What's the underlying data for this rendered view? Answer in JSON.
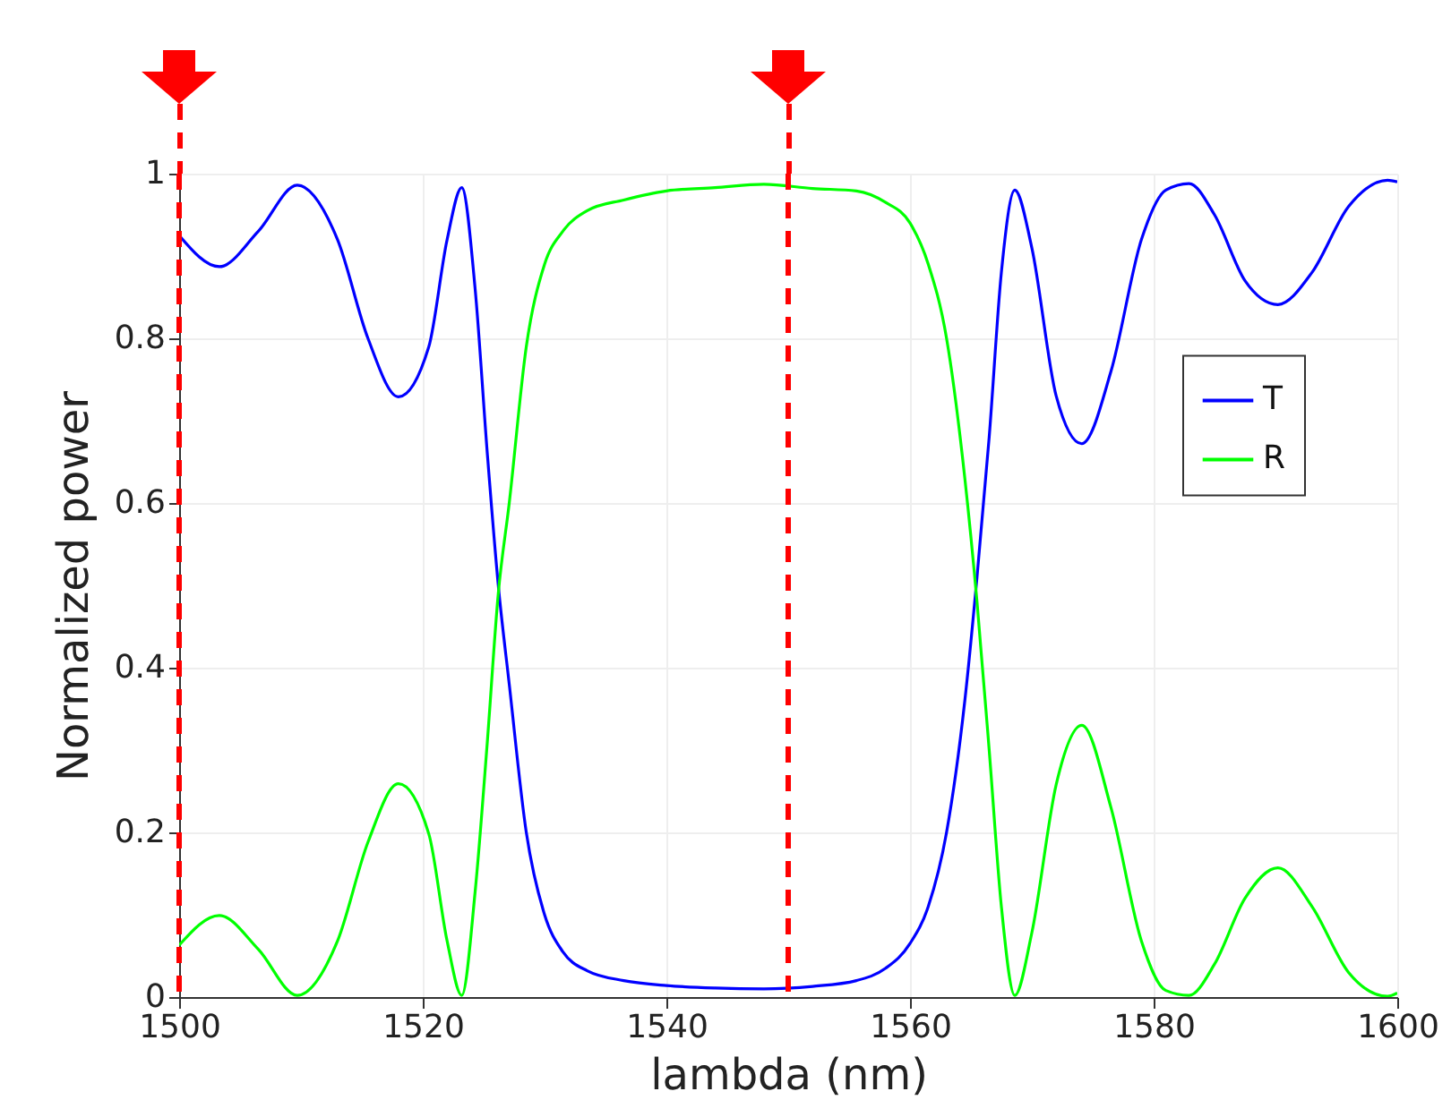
{
  "chart_data": {
    "type": "line",
    "xlabel": "lambda (nm)",
    "ylabel": "Normalized power",
    "xlim": [
      1500,
      1600
    ],
    "xticks": [
      1500,
      1520,
      1540,
      1560,
      1580,
      1600
    ],
    "ylim": [
      0,
      1
    ],
    "yticks": [
      0,
      0.2,
      0.4,
      0.6,
      0.8,
      1
    ],
    "grid": true,
    "legend": "right",
    "line_style": "solid",
    "x": [
      1500,
      1503.3,
      1506.5,
      1509.7,
      1513,
      1515.5,
      1518,
      1520.5,
      1522,
      1523.2,
      1524.3,
      1525.3,
      1526.2,
      1527.1,
      1528.5,
      1530,
      1531.5,
      1533.5,
      1536.5,
      1540,
      1544,
      1548,
      1552,
      1555.6,
      1558,
      1560,
      1561.5,
      1563,
      1564.5,
      1565.5,
      1566.5,
      1567.5,
      1568.6,
      1570,
      1572,
      1574.1,
      1576.5,
      1579,
      1581,
      1582.9,
      1585,
      1587.5,
      1590.2,
      1593,
      1596,
      1599.2,
      1600
    ],
    "series": [
      {
        "name": "T",
        "color": "#0000ff",
        "values": [
          0.925,
          0.887,
          0.93,
          0.986,
          0.92,
          0.8,
          0.729,
          0.79,
          0.92,
          0.983,
          0.86,
          0.66,
          0.5,
          0.38,
          0.2,
          0.1,
          0.055,
          0.032,
          0.02,
          0.014,
          0.011,
          0.01,
          0.013,
          0.02,
          0.035,
          0.065,
          0.11,
          0.2,
          0.36,
          0.51,
          0.68,
          0.88,
          0.98,
          0.91,
          0.73,
          0.672,
          0.76,
          0.92,
          0.98,
          0.988,
          0.95,
          0.87,
          0.841,
          0.88,
          0.96,
          0.992,
          0.99
        ]
      },
      {
        "name": "R",
        "color": "#00ff00",
        "values": [
          0.063,
          0.099,
          0.058,
          0.002,
          0.068,
          0.188,
          0.259,
          0.198,
          0.068,
          0.002,
          0.128,
          0.31,
          0.49,
          0.6,
          0.79,
          0.89,
          0.93,
          0.955,
          0.968,
          0.979,
          0.983,
          0.987,
          0.982,
          0.979,
          0.965,
          0.94,
          0.89,
          0.8,
          0.63,
          0.48,
          0.3,
          0.11,
          0.002,
          0.078,
          0.258,
          0.33,
          0.23,
          0.068,
          0.008,
          0.002,
          0.04,
          0.12,
          0.157,
          0.11,
          0.03,
          0.001,
          0.005
        ]
      }
    ],
    "ref_lines": [
      {
        "axis": "x",
        "value": 1500,
        "color": "#ff0000",
        "line_style": "dashed"
      },
      {
        "axis": "x",
        "value": 1550,
        "color": "#ff0000",
        "line_style": "dashed"
      }
    ]
  }
}
